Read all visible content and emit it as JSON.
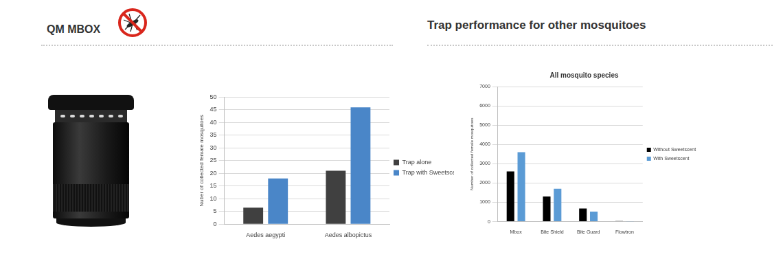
{
  "header": {
    "left": "QM MBOX",
    "right": "Trap performance for other mosquitoes"
  },
  "chart_data": [
    {
      "type": "bar",
      "categories": [
        "Aedes aegypti",
        "Aedes albopictus"
      ],
      "ylabel": "Nuber of collected female mosquitoes",
      "series": [
        {
          "name": "Trap alone",
          "color": "#404040",
          "values": [
            6.5,
            21
          ]
        },
        {
          "name": "Trap with Sweetscent",
          "color": "#4a86c8",
          "values": [
            18,
            46
          ]
        }
      ],
      "ylim": [
        0,
        50
      ],
      "yticks": [
        0,
        5,
        10,
        15,
        20,
        25,
        30,
        35,
        40,
        45,
        50
      ],
      "grid": true,
      "legend": "right"
    },
    {
      "type": "bar",
      "title": "All mosquito species",
      "categories": [
        "Mbox",
        "Bite Shield",
        "Bite Guard",
        "Flowtron"
      ],
      "ylabel": "Number of collected female mosquitoes",
      "series": [
        {
          "name": "Without Sweetscent",
          "color": "#000000",
          "values": [
            2600,
            1300,
            680,
            30
          ]
        },
        {
          "name": "With Sweetscent",
          "color": "#5b9bd5",
          "values": [
            3600,
            1700,
            520,
            10
          ]
        }
      ],
      "ylim": [
        0,
        7000
      ],
      "yticks": [
        0,
        1000,
        2000,
        3000,
        4000,
        5000,
        6000,
        7000
      ],
      "grid": true,
      "legend": "right"
    }
  ]
}
